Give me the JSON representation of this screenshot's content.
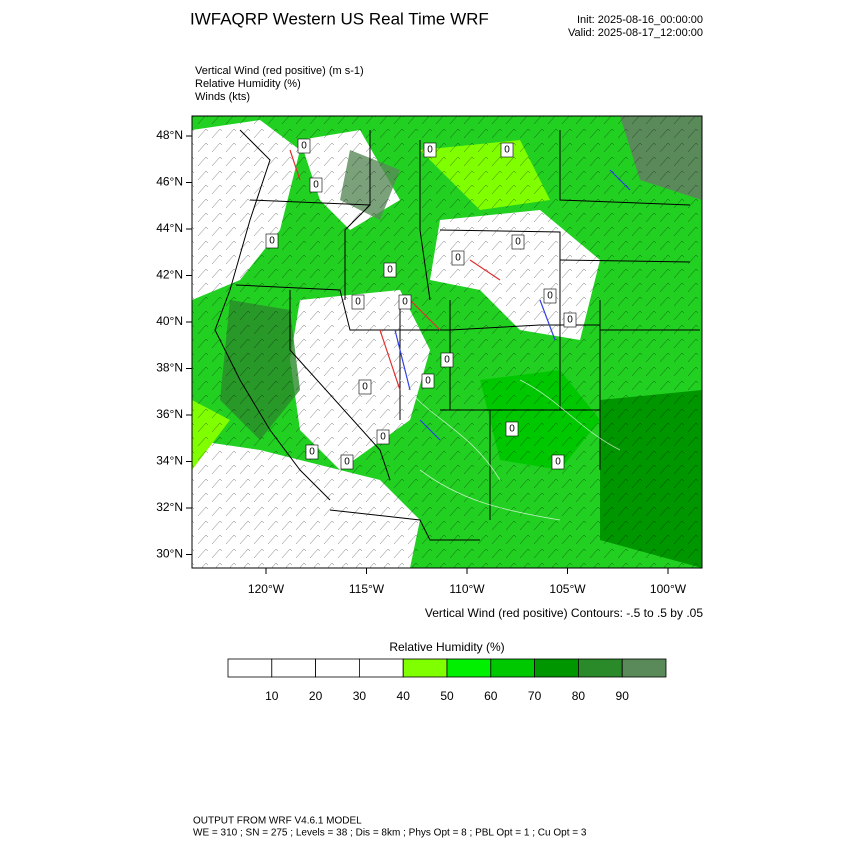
{
  "header": {
    "title": "IWFAQRP Western US Real Time WRF",
    "init": "Init: 2025-08-16_00:00:00",
    "valid": "Valid: 2025-08-17_12:00:00"
  },
  "fields": [
    "Vertical Wind (red positive)   (m s-1)",
    "Relative Humidity   (%)",
    "Winds   (kts)"
  ],
  "map": {
    "lat_labels": [
      "48°N",
      "46°N",
      "44°N",
      "42°N",
      "40°N",
      "38°N",
      "36°N",
      "34°N",
      "32°N",
      "30°N"
    ],
    "lon_labels": [
      "120°W",
      "115°W",
      "110°W",
      "105°W",
      "100°W"
    ],
    "contour_labels": [
      "0",
      "0",
      "0",
      "0",
      "0",
      "0",
      "0",
      "0",
      "0",
      "0",
      "0",
      "0",
      "0",
      "0",
      "0",
      "0",
      "0",
      "0",
      "0",
      "0"
    ],
    "contour_note": "Vertical Wind (red positive) Contours: -.5 to .5 by .05"
  },
  "colorbar": {
    "title": "Relative Humidity  (%)",
    "colors": [
      "#ffffff",
      "#ffffff",
      "#ffffff",
      "#ffffff",
      "#80ff00",
      "#00f000",
      "#00c800",
      "#009600",
      "#2a8a2a",
      "#5a8a5a"
    ],
    "labels": [
      10,
      20,
      30,
      40,
      50,
      60,
      70,
      80,
      90
    ]
  },
  "footer": {
    "line1": "OUTPUT FROM WRF V4.6.1 MODEL",
    "line2": "WE = 310 ; SN = 275 ; Levels = 38 ; Dis = 8km ; Phys Opt = 8 ; PBL Opt = 1 ; Cu Opt = 3"
  }
}
